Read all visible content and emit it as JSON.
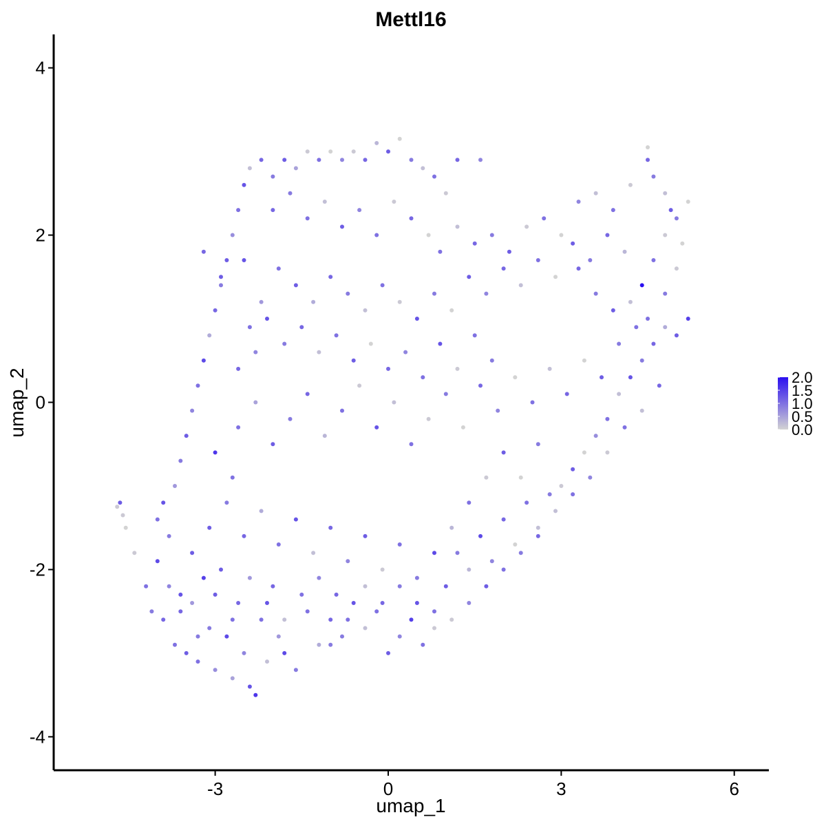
{
  "chart_data": {
    "type": "scatter",
    "title": "Mettl16",
    "xlabel": "umap_1",
    "ylabel": "umap_2",
    "xlim": [
      -5.8,
      6.6
    ],
    "ylim": [
      -4.4,
      4.4
    ],
    "x_ticks": [
      {
        "value": -3,
        "label": "-3"
      },
      {
        "value": 0,
        "label": "0"
      },
      {
        "value": 3,
        "label": "3"
      },
      {
        "value": 6,
        "label": "6"
      }
    ],
    "y_ticks": [
      {
        "value": -4,
        "label": "-4"
      },
      {
        "value": -2,
        "label": "-2"
      },
      {
        "value": 0,
        "label": "0"
      },
      {
        "value": 2,
        "label": "2"
      },
      {
        "value": 4,
        "label": "4"
      }
    ],
    "grid": false,
    "legend": {
      "placement": "right",
      "type": "colorbar",
      "low_color": "#d3d3d3",
      "high_color": "#2b0ff0",
      "min": 0,
      "max": 2.0,
      "ticks": [
        {
          "value": 0.0,
          "label": "0.0"
        },
        {
          "value": 0.5,
          "label": "0.5"
        },
        {
          "value": 1.0,
          "label": "1.0"
        },
        {
          "value": 1.5,
          "label": "1.5"
        },
        {
          "value": 2.0,
          "label": "2.0"
        }
      ]
    },
    "points": [
      [
        -4.7,
        -1.25,
        0.1
      ],
      [
        -4.65,
        -1.2,
        1.2
      ],
      [
        -4.6,
        -1.35,
        0.1
      ],
      [
        -4.55,
        -1.5,
        0.0
      ],
      [
        -4.4,
        -1.8,
        0.1
      ],
      [
        -4.2,
        -2.2,
        1.0
      ],
      [
        -4.1,
        -2.5,
        0.9
      ],
      [
        -4.0,
        -1.9,
        1.4
      ],
      [
        -3.9,
        -2.6,
        1.1
      ],
      [
        -3.8,
        -2.2,
        0.8
      ],
      [
        -3.7,
        -2.9,
        1.0
      ],
      [
        -3.6,
        -2.3,
        1.3
      ],
      [
        -3.5,
        -3.0,
        1.2
      ],
      [
        -3.4,
        -2.4,
        0.6
      ],
      [
        -3.3,
        -3.1,
        1.0
      ],
      [
        -3.2,
        -2.1,
        1.5
      ],
      [
        -3.1,
        -2.7,
        0.9
      ],
      [
        -3.0,
        -3.2,
        0.7
      ],
      [
        -2.9,
        -2.0,
        1.2
      ],
      [
        -2.8,
        -2.8,
        1.4
      ],
      [
        -2.7,
        -3.3,
        0.5
      ],
      [
        -2.6,
        -2.4,
        1.1
      ],
      [
        -2.5,
        -3.0,
        0.8
      ],
      [
        -2.4,
        -3.4,
        1.3
      ],
      [
        -2.3,
        -3.5,
        1.6
      ],
      [
        -2.2,
        -2.6,
        1.0
      ],
      [
        -2.1,
        -3.1,
        0.2
      ],
      [
        -2.0,
        -2.2,
        1.1
      ],
      [
        -1.9,
        -2.8,
        0.6
      ],
      [
        -1.8,
        -3.0,
        1.4
      ],
      [
        -1.6,
        -3.2,
        0.9
      ],
      [
        -1.4,
        -2.5,
        1.0
      ],
      [
        -1.2,
        -2.9,
        0.4
      ],
      [
        -1.0,
        -2.6,
        1.1
      ],
      [
        -0.8,
        -2.8,
        0.9
      ],
      [
        -0.6,
        -2.4,
        1.3
      ],
      [
        -0.4,
        -2.7,
        0.2
      ],
      [
        -0.2,
        -2.5,
        1.0
      ],
      [
        0.0,
        -3.0,
        1.2
      ],
      [
        0.2,
        -2.8,
        0.8
      ],
      [
        0.4,
        -2.6,
        1.5
      ],
      [
        0.6,
        -2.9,
        1.0
      ],
      [
        0.8,
        -2.7,
        0.1
      ],
      [
        1.0,
        -2.2,
        1.2
      ],
      [
        1.2,
        -1.8,
        0.9
      ],
      [
        1.4,
        -2.0,
        0.3
      ],
      [
        1.6,
        -1.6,
        1.4
      ],
      [
        1.8,
        -1.9,
        0.8
      ],
      [
        2.0,
        -1.4,
        1.1
      ],
      [
        2.2,
        -1.7,
        0.0
      ],
      [
        2.4,
        -1.2,
        1.0
      ],
      [
        2.6,
        -1.5,
        0.2
      ],
      [
        2.8,
        -1.1,
        0.9
      ],
      [
        3.0,
        -1.0,
        0.1
      ],
      [
        3.2,
        -0.8,
        1.2
      ],
      [
        3.4,
        -0.6,
        0.0
      ],
      [
        3.6,
        -0.4,
        0.7
      ],
      [
        3.8,
        -0.2,
        1.0
      ],
      [
        4.0,
        0.1,
        0.2
      ],
      [
        4.2,
        0.3,
        1.3
      ],
      [
        4.4,
        0.5,
        0.9
      ],
      [
        4.6,
        0.7,
        1.1
      ],
      [
        4.8,
        0.9,
        0.4
      ],
      [
        5.0,
        0.8,
        1.2
      ],
      [
        5.2,
        1.0,
        1.5
      ],
      [
        -4.0,
        -1.4,
        1.0
      ],
      [
        -3.9,
        -1.2,
        1.3
      ],
      [
        -3.7,
        -1.0,
        0.6
      ],
      [
        -3.6,
        -0.7,
        0.9
      ],
      [
        -3.5,
        -0.4,
        1.2
      ],
      [
        -3.4,
        -0.1,
        0.8
      ],
      [
        -3.3,
        0.2,
        1.0
      ],
      [
        -3.2,
        0.5,
        1.4
      ],
      [
        -3.1,
        0.8,
        0.4
      ],
      [
        -3.0,
        1.1,
        1.1
      ],
      [
        -2.9,
        1.4,
        0.9
      ],
      [
        -2.8,
        1.7,
        1.2
      ],
      [
        -2.7,
        2.0,
        0.7
      ],
      [
        -2.6,
        2.3,
        1.0
      ],
      [
        -2.5,
        2.6,
        1.3
      ],
      [
        -2.4,
        2.8,
        0.2
      ],
      [
        -2.2,
        2.9,
        1.1
      ],
      [
        -2.0,
        2.7,
        0.9
      ],
      [
        -1.8,
        2.9,
        1.2
      ],
      [
        -1.6,
        2.8,
        0.5
      ],
      [
        -1.4,
        3.0,
        0.1
      ],
      [
        -1.2,
        2.9,
        1.0
      ],
      [
        -1.0,
        3.0,
        0.0
      ],
      [
        -0.8,
        2.9,
        0.8
      ],
      [
        -0.6,
        3.0,
        0.1
      ],
      [
        -0.4,
        2.9,
        1.1
      ],
      [
        -0.2,
        3.1,
        0.3
      ],
      [
        0.0,
        3.0,
        1.2
      ],
      [
        0.2,
        3.15,
        0.0
      ],
      [
        0.4,
        2.9,
        0.9
      ],
      [
        0.6,
        2.8,
        0.2
      ],
      [
        0.8,
        2.7,
        1.0
      ],
      [
        1.0,
        2.5,
        0.1
      ],
      [
        1.2,
        2.9,
        1.1
      ],
      [
        1.6,
        2.9,
        0.8
      ],
      [
        -3.2,
        1.8,
        1.1
      ],
      [
        -2.9,
        1.5,
        1.2
      ],
      [
        -2.5,
        1.7,
        1.3
      ],
      [
        -2.2,
        1.2,
        0.6
      ],
      [
        -1.9,
        1.6,
        1.0
      ],
      [
        -1.6,
        1.4,
        1.2
      ],
      [
        -1.3,
        1.2,
        0.4
      ],
      [
        -1.0,
        1.5,
        1.1
      ],
      [
        -0.7,
        1.3,
        0.9
      ],
      [
        -0.4,
        1.1,
        0.2
      ],
      [
        -0.1,
        1.4,
        1.0
      ],
      [
        0.2,
        1.2,
        0.1
      ],
      [
        0.5,
        1.0,
        1.3
      ],
      [
        0.8,
        1.3,
        0.9
      ],
      [
        1.1,
        1.1,
        0.0
      ],
      [
        1.4,
        1.5,
        1.2
      ],
      [
        1.7,
        1.3,
        0.8
      ],
      [
        2.0,
        1.6,
        1.1
      ],
      [
        2.3,
        1.4,
        0.2
      ],
      [
        2.6,
        1.7,
        1.0
      ],
      [
        2.9,
        1.5,
        0.0
      ],
      [
        3.2,
        1.9,
        1.2
      ],
      [
        3.5,
        1.7,
        0.9
      ],
      [
        3.8,
        2.0,
        1.1
      ],
      [
        4.1,
        1.8,
        0.3
      ],
      [
        4.4,
        1.4,
        2.0
      ],
      [
        4.6,
        1.7,
        1.0
      ],
      [
        4.8,
        2.0,
        0.1
      ],
      [
        5.0,
        2.2,
        0.9
      ],
      [
        5.2,
        2.4,
        0.0
      ],
      [
        3.3,
        2.4,
        0.8
      ],
      [
        3.6,
        2.5,
        0.2
      ],
      [
        3.9,
        2.3,
        1.0
      ],
      [
        4.2,
        2.6,
        0.1
      ],
      [
        4.5,
        2.9,
        1.1
      ],
      [
        4.6,
        2.7,
        0.9
      ],
      [
        4.8,
        2.5,
        0.2
      ],
      [
        4.5,
        3.05,
        0.0
      ],
      [
        4.9,
        2.3,
        1.2
      ],
      [
        5.1,
        1.9,
        0.0
      ],
      [
        -3.0,
        -0.6,
        1.6
      ],
      [
        -2.6,
        -0.3,
        1.0
      ],
      [
        -2.3,
        0.0,
        0.5
      ],
      [
        -2.0,
        -0.5,
        1.2
      ],
      [
        -1.7,
        -0.2,
        0.9
      ],
      [
        -1.4,
        0.1,
        1.1
      ],
      [
        -1.1,
        -0.4,
        0.3
      ],
      [
        -0.8,
        -0.1,
        1.0
      ],
      [
        -0.5,
        0.2,
        0.1
      ],
      [
        -0.2,
        -0.3,
        1.3
      ],
      [
        0.1,
        0.0,
        0.2
      ],
      [
        0.4,
        -0.5,
        1.0
      ],
      [
        0.7,
        -0.2,
        0.1
      ],
      [
        1.0,
        0.1,
        0.9
      ],
      [
        1.3,
        -0.3,
        0.0
      ],
      [
        1.6,
        0.2,
        1.1
      ],
      [
        1.9,
        -0.1,
        0.8
      ],
      [
        2.2,
        0.3,
        0.0
      ],
      [
        2.5,
        0.0,
        1.0
      ],
      [
        2.8,
        0.4,
        0.2
      ],
      [
        3.1,
        0.1,
        1.1
      ],
      [
        3.4,
        0.5,
        0.0
      ],
      [
        3.7,
        0.3,
        1.2
      ],
      [
        4.0,
        0.7,
        0.9
      ],
      [
        4.3,
        0.9,
        1.0
      ],
      [
        -3.1,
        -1.5,
        1.2
      ],
      [
        -2.8,
        -1.2,
        0.9
      ],
      [
        -2.5,
        -1.6,
        1.1
      ],
      [
        -2.2,
        -1.3,
        0.4
      ],
      [
        -1.9,
        -1.7,
        1.0
      ],
      [
        -1.6,
        -1.4,
        1.3
      ],
      [
        -1.3,
        -1.8,
        0.2
      ],
      [
        -1.0,
        -1.5,
        1.1
      ],
      [
        -0.7,
        -1.9,
        0.8
      ],
      [
        -0.4,
        -1.6,
        1.2
      ],
      [
        -0.1,
        -2.0,
        0.1
      ],
      [
        0.2,
        -1.7,
        1.0
      ],
      [
        0.5,
        -2.1,
        0.9
      ],
      [
        0.8,
        -1.8,
        1.4
      ],
      [
        1.1,
        -1.5,
        0.3
      ],
      [
        1.4,
        -1.2,
        1.0
      ],
      [
        1.7,
        -0.9,
        0.1
      ],
      [
        2.0,
        -0.6,
        1.2
      ],
      [
        2.3,
        -0.9,
        0.0
      ],
      [
        2.6,
        -0.5,
        0.9
      ],
      [
        -3.6,
        -2.5,
        1.1
      ],
      [
        -3.3,
        -2.8,
        0.9
      ],
      [
        -3.0,
        -2.3,
        1.2
      ],
      [
        -2.7,
        -2.6,
        1.0
      ],
      [
        -2.4,
        -2.1,
        0.6
      ],
      [
        -2.1,
        -2.4,
        1.3
      ],
      [
        -1.8,
        -2.6,
        0.2
      ],
      [
        -1.5,
        -2.3,
        1.0
      ],
      [
        -1.2,
        -2.1,
        0.8
      ],
      [
        -0.9,
        -2.3,
        1.1
      ],
      [
        -2.4,
        0.9,
        1.0
      ],
      [
        -2.1,
        1.0,
        1.3
      ],
      [
        -1.8,
        0.7,
        0.9
      ],
      [
        -1.5,
        0.9,
        1.1
      ],
      [
        -1.2,
        0.6,
        0.2
      ],
      [
        -0.9,
        0.8,
        1.0
      ],
      [
        -0.6,
        0.5,
        1.2
      ],
      [
        -0.3,
        0.7,
        0.0
      ],
      [
        0.0,
        0.4,
        1.1
      ],
      [
        0.3,
        0.6,
        0.8
      ],
      [
        0.6,
        0.3,
        1.0
      ],
      [
        0.9,
        0.7,
        1.3
      ],
      [
        1.2,
        0.4,
        0.1
      ],
      [
        1.5,
        0.8,
        1.0
      ],
      [
        1.8,
        0.5,
        0.9
      ],
      [
        -2.6,
        0.4,
        1.1
      ],
      [
        -2.3,
        0.6,
        0.8
      ],
      [
        -2.7,
        -0.9,
        1.0
      ],
      [
        -3.4,
        -1.8,
        1.2
      ],
      [
        -3.8,
        -1.6,
        0.9
      ],
      [
        -2.0,
        2.3,
        1.1
      ],
      [
        -1.7,
        2.5,
        0.9
      ],
      [
        -1.4,
        2.2,
        1.0
      ],
      [
        -1.1,
        2.4,
        0.2
      ],
      [
        -0.8,
        2.1,
        1.2
      ],
      [
        -0.5,
        2.3,
        0.8
      ],
      [
        -0.2,
        2.0,
        1.0
      ],
      [
        0.1,
        2.4,
        0.1
      ],
      [
        0.4,
        2.2,
        1.1
      ],
      [
        0.7,
        2.0,
        0.0
      ],
      [
        0.9,
        1.8,
        1.0
      ],
      [
        1.2,
        2.1,
        0.2
      ],
      [
        1.5,
        1.9,
        1.1
      ],
      [
        1.8,
        2.0,
        0.9
      ],
      [
        2.1,
        1.8,
        1.2
      ],
      [
        2.4,
        2.1,
        0.1
      ],
      [
        2.7,
        2.2,
        1.0
      ],
      [
        3.0,
        2.0,
        0.0
      ],
      [
        3.3,
        1.6,
        1.1
      ],
      [
        3.6,
        1.3,
        0.9
      ],
      [
        3.9,
        1.1,
        1.2
      ],
      [
        4.2,
        1.2,
        0.2
      ],
      [
        4.5,
        1.0,
        1.0
      ],
      [
        4.8,
        1.3,
        0.9
      ],
      [
        5.0,
        1.6,
        0.1
      ],
      [
        4.7,
        0.2,
        1.1
      ],
      [
        4.4,
        -0.1,
        0.2
      ],
      [
        4.1,
        -0.3,
        1.0
      ],
      [
        3.8,
        -0.6,
        0.1
      ],
      [
        3.5,
        -0.9,
        0.8
      ],
      [
        3.2,
        -1.1,
        1.0
      ],
      [
        2.9,
        -1.3,
        0.2
      ],
      [
        2.6,
        -1.6,
        1.1
      ],
      [
        2.3,
        -1.8,
        0.9
      ],
      [
        2.0,
        -2.0,
        1.0
      ],
      [
        1.7,
        -2.2,
        1.2
      ],
      [
        1.4,
        -2.4,
        0.8
      ],
      [
        1.1,
        -2.6,
        0.1
      ],
      [
        0.8,
        -2.5,
        1.0
      ],
      [
        0.5,
        -2.4,
        1.3
      ],
      [
        0.2,
        -2.2,
        0.9
      ],
      [
        -0.1,
        -2.4,
        1.1
      ],
      [
        -0.4,
        -2.2,
        0.2
      ],
      [
        -0.7,
        -2.6,
        1.0
      ],
      [
        -1.0,
        -2.9,
        0.9
      ]
    ]
  }
}
